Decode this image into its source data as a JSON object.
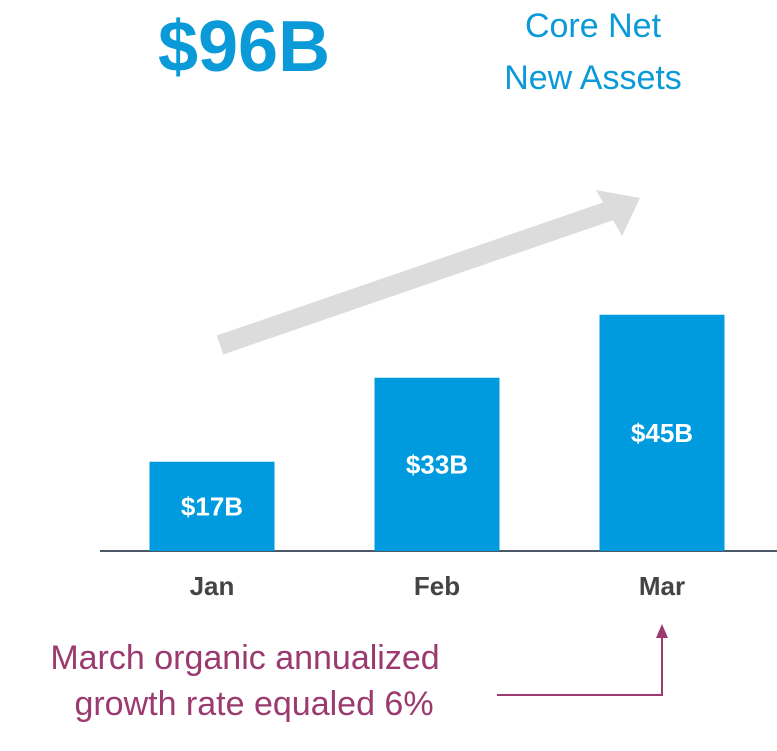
{
  "chart_data": {
    "type": "bar",
    "title": "$96B",
    "subtitle": [
      "Core Net",
      "New Assets"
    ],
    "categories": [
      "Jan",
      "Feb",
      "Mar"
    ],
    "values": [
      17,
      33,
      45
    ],
    "value_labels": [
      "$17B",
      "$33B",
      "$45B"
    ],
    "color": "#009bde",
    "annotation": [
      "March organic annualized",
      "growth rate equaled 6%"
    ]
  }
}
